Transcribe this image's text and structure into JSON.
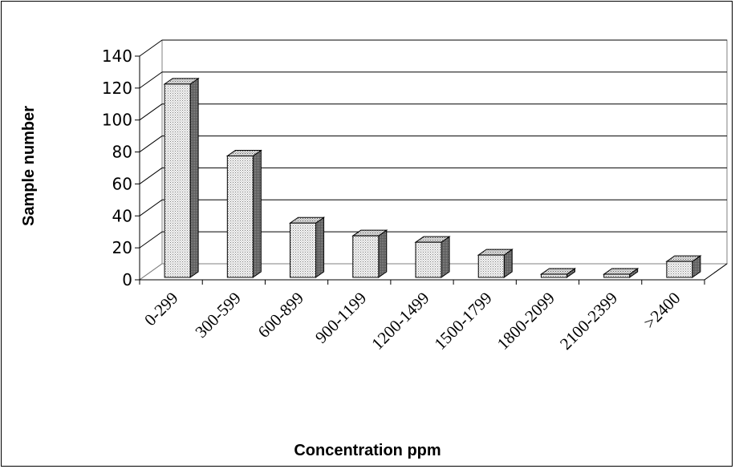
{
  "chart_data": {
    "type": "bar",
    "title": "",
    "xlabel": "Concentration ppm",
    "ylabel": "Sample number",
    "categories": [
      "0-299",
      "300-599",
      "600-899",
      "900-1199",
      "1200-1499",
      "1500-1799",
      "1800-2099",
      "2100-2399",
      ">2400"
    ],
    "values": [
      121,
      76,
      34,
      26,
      22,
      14,
      2,
      2,
      10
    ],
    "ylim": [
      0,
      140
    ],
    "yticks": [
      0,
      20,
      40,
      60,
      80,
      100,
      120,
      140
    ],
    "grid": true,
    "legend": "none",
    "three_d": true,
    "bar_color": "#e8e8e8",
    "bar_side_color": "#777777"
  }
}
